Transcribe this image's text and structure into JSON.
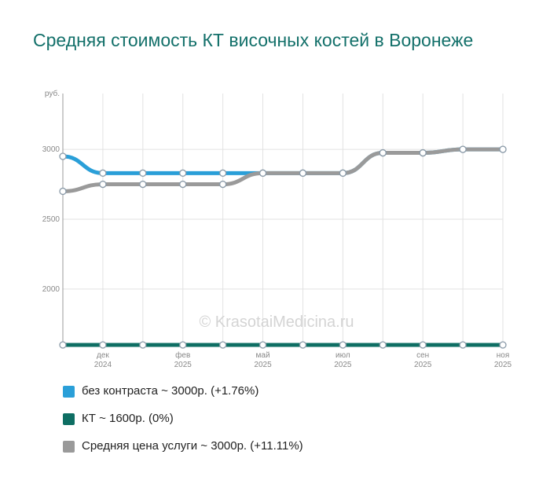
{
  "title": "Средняя стоимость КТ височных костей  в Воронеже",
  "watermark": "© KrasotaiMedicina.ru",
  "chart_data": {
    "type": "line",
    "ylabel": "руб.",
    "ylim": [
      1600,
      3400
    ],
    "yticks": [
      2000,
      2500,
      3000
    ],
    "x_tick_labels": [
      {
        "month": "дек",
        "year": "2024",
        "index": 1
      },
      {
        "month": "фев",
        "year": "2025",
        "index": 3
      },
      {
        "month": "май",
        "year": "2025",
        "index": 5
      },
      {
        "month": "июл",
        "year": "2025",
        "index": 7
      },
      {
        "month": "сен",
        "year": "2025",
        "index": 9
      },
      {
        "month": "ноя",
        "year": "2025",
        "index": 11
      }
    ],
    "point_count": 12,
    "series": [
      {
        "name": "без контраста ~ 3000р. (+1.76%)",
        "color": "#2a9fd8",
        "values": [
          2950,
          2830,
          2830,
          2830,
          2830,
          2830,
          2830,
          2830,
          2975,
          2975,
          3000,
          3000
        ]
      },
      {
        "name": "КТ ~ 1600р. (0%)",
        "color": "#0e6e63",
        "values": [
          1600,
          1600,
          1600,
          1600,
          1600,
          1600,
          1600,
          1600,
          1600,
          1600,
          1600,
          1600
        ]
      },
      {
        "name": "Средняя цена услуги ~ 3000р. (+11.11%)",
        "color": "#9a9a9a",
        "values": [
          2700,
          2750,
          2750,
          2750,
          2750,
          2830,
          2830,
          2830,
          2975,
          2975,
          3000,
          3000
        ]
      }
    ]
  }
}
